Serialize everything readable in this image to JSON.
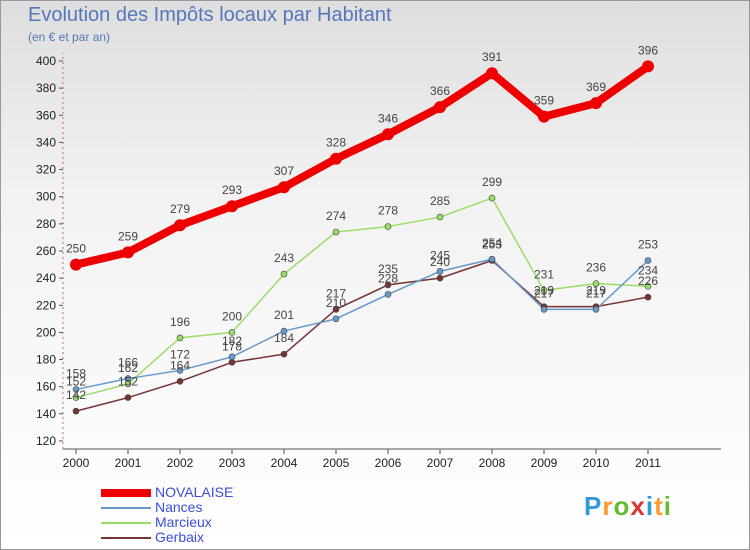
{
  "chart_data": {
    "type": "line",
    "title": "Evolution des Impôts locaux par Habitant",
    "subtitle": "(en € et par an)",
    "xlabel": "",
    "ylabel": "",
    "ylim": [
      120,
      400
    ],
    "ytick_step": 20,
    "grid": false,
    "legend_position": "bottom-left",
    "x": [
      "2000",
      "2001",
      "2002",
      "2003",
      "2004",
      "2005",
      "2006",
      "2007",
      "2008",
      "2009",
      "2010",
      "2011"
    ],
    "series": [
      {
        "name": "NOVALAISE",
        "color": "#ee0000",
        "values": [
          250,
          259,
          279,
          293,
          307,
          328,
          346,
          366,
          391,
          359,
          369,
          396
        ]
      },
      {
        "name": "Nances",
        "color": "#6699cc",
        "values": [
          158,
          166,
          172,
          182,
          201,
          210,
          228,
          245,
          254,
          217,
          217,
          253
        ]
      },
      {
        "name": "Marcieux",
        "color": "#99dd66",
        "values": [
          152,
          162,
          196,
          200,
          243,
          274,
          278,
          285,
          299,
          231,
          236,
          234
        ]
      },
      {
        "name": "Gerbaix",
        "color": "#773333",
        "values": [
          142,
          152,
          164,
          178,
          184,
          217,
          235,
          240,
          253,
          219,
          219,
          226
        ]
      }
    ]
  },
  "logo": {
    "letters": [
      "P",
      "r",
      "o",
      "x",
      "i",
      "t",
      "i"
    ],
    "colors": [
      "#3399dd",
      "#ff9933",
      "#66bb33",
      "#dd3333",
      "#3399dd",
      "#ff9933",
      "#66bb33"
    ]
  }
}
